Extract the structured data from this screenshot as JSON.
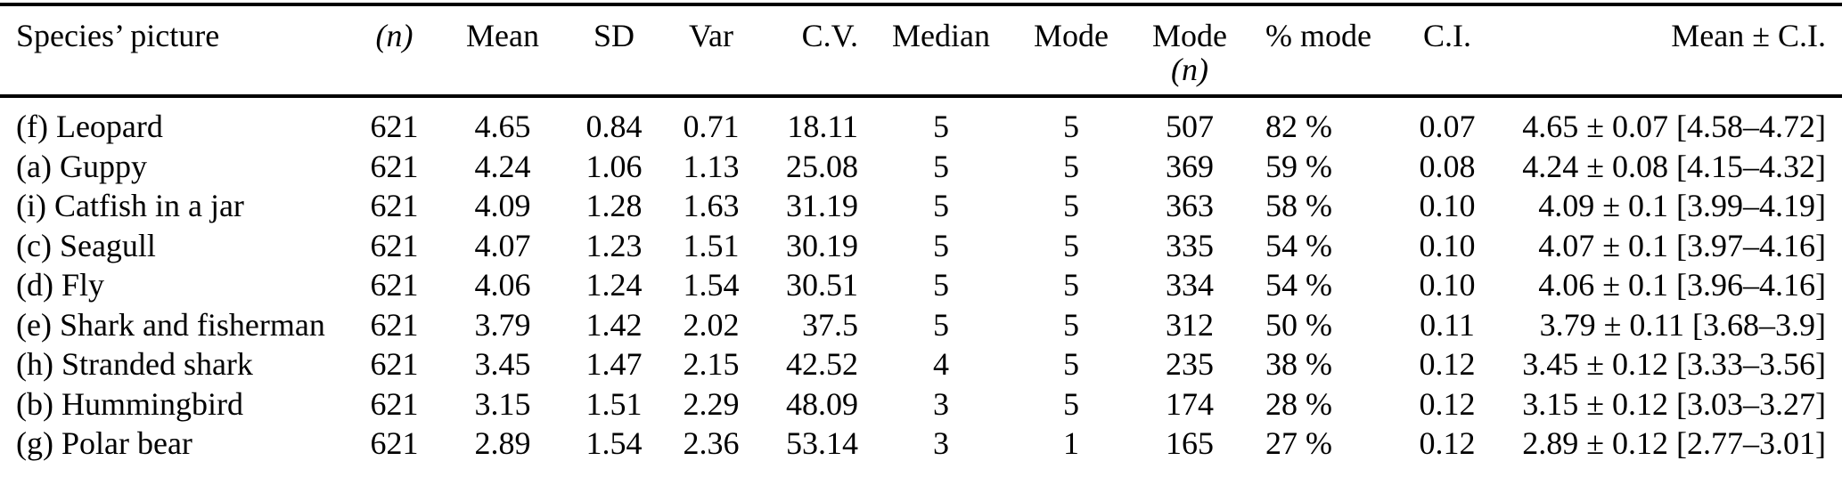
{
  "page": {
    "background_color": "#ffffff",
    "text_color": "#000000"
  },
  "table": {
    "columns": [
      {
        "key": "species",
        "label": "Species’ picture"
      },
      {
        "key": "n",
        "label": "(n)",
        "italic": true
      },
      {
        "key": "mean",
        "label": "Mean"
      },
      {
        "key": "sd",
        "label": "SD"
      },
      {
        "key": "var",
        "label": "Var"
      },
      {
        "key": "cv",
        "label": "C.V."
      },
      {
        "key": "median",
        "label": "Median"
      },
      {
        "key": "mode",
        "label": "Mode"
      },
      {
        "key": "mode_n",
        "label": "Mode",
        "sublabel": "(n)"
      },
      {
        "key": "pct_mode",
        "label": "% mode"
      },
      {
        "key": "ci",
        "label": "C.I."
      },
      {
        "key": "mean_ci",
        "label": "Mean ± C.I."
      }
    ],
    "rows": [
      {
        "species": "(f) Leopard",
        "n": "621",
        "mean": "4.65",
        "sd": "0.84",
        "var": "0.71",
        "cv": "18.11",
        "median": "5",
        "mode": "5",
        "mode_n": "507",
        "pct_mode": "82 %",
        "ci": "0.07",
        "mean_ci": "4.65 ± 0.07 [4.58–4.72]"
      },
      {
        "species": "(a) Guppy",
        "n": "621",
        "mean": "4.24",
        "sd": "1.06",
        "var": "1.13",
        "cv": "25.08",
        "median": "5",
        "mode": "5",
        "mode_n": "369",
        "pct_mode": "59 %",
        "ci": "0.08",
        "mean_ci": "4.24 ± 0.08 [4.15–4.32]"
      },
      {
        "species": "(i) Catfish in a jar",
        "n": "621",
        "mean": "4.09",
        "sd": "1.28",
        "var": "1.63",
        "cv": "31.19",
        "median": "5",
        "mode": "5",
        "mode_n": "363",
        "pct_mode": "58 %",
        "ci": "0.10",
        "mean_ci": "4.09 ± 0.1 [3.99–4.19]"
      },
      {
        "species": "(c) Seagull",
        "n": "621",
        "mean": "4.07",
        "sd": "1.23",
        "var": "1.51",
        "cv": "30.19",
        "median": "5",
        "mode": "5",
        "mode_n": "335",
        "pct_mode": "54 %",
        "ci": "0.10",
        "mean_ci": "4.07 ± 0.1 [3.97–4.16]"
      },
      {
        "species": "(d) Fly",
        "n": "621",
        "mean": "4.06",
        "sd": "1.24",
        "var": "1.54",
        "cv": "30.51",
        "median": "5",
        "mode": "5",
        "mode_n": "334",
        "pct_mode": "54 %",
        "ci": "0.10",
        "mean_ci": "4.06 ± 0.1 [3.96–4.16]"
      },
      {
        "species": "(e) Shark and fisherman",
        "n": "621",
        "mean": "3.79",
        "sd": "1.42",
        "var": "2.02",
        "cv": "37.5",
        "median": "5",
        "mode": "5",
        "mode_n": "312",
        "pct_mode": "50 %",
        "ci": "0.11",
        "mean_ci": "3.79 ± 0.11 [3.68–3.9]"
      },
      {
        "species": "(h) Stranded shark",
        "n": "621",
        "mean": "3.45",
        "sd": "1.47",
        "var": "2.15",
        "cv": "42.52",
        "median": "4",
        "mode": "5",
        "mode_n": "235",
        "pct_mode": "38 %",
        "ci": "0.12",
        "mean_ci": "3.45 ± 0.12 [3.33–3.56]"
      },
      {
        "species": "(b) Hummingbird",
        "n": "621",
        "mean": "3.15",
        "sd": "1.51",
        "var": "2.29",
        "cv": "48.09",
        "median": "3",
        "mode": "5",
        "mode_n": "174",
        "pct_mode": "28 %",
        "ci": "0.12",
        "mean_ci": "3.15 ± 0.12 [3.03–3.27]"
      },
      {
        "species": "(g) Polar bear",
        "n": "621",
        "mean": "2.89",
        "sd": "1.54",
        "var": "2.36",
        "cv": "53.14",
        "median": "3",
        "mode": "1",
        "mode_n": "165",
        "pct_mode": "27 %",
        "ci": "0.12",
        "mean_ci": "2.89 ± 0.12 [2.77–3.01]"
      }
    ]
  }
}
